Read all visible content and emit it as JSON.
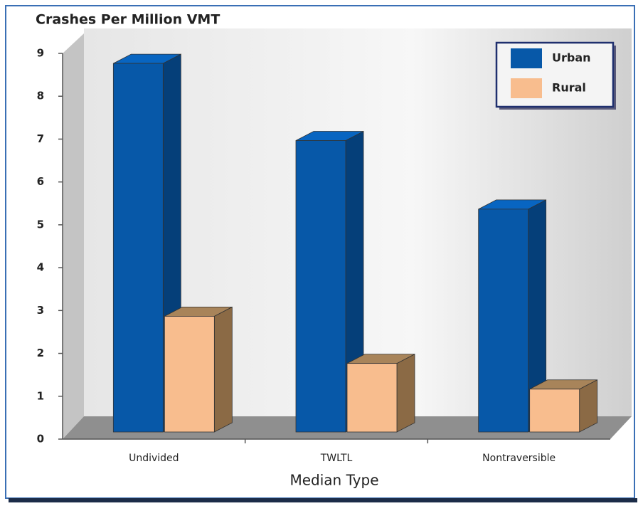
{
  "chart_data": {
    "type": "bar",
    "title": "Crashes Per Million VMT",
    "x_label": "Median Type",
    "categories": [
      "Undivided",
      "TWLTL",
      "Nontraversible"
    ],
    "series": [
      {
        "name": "Urban",
        "color": "#0758a8",
        "values": [
          8.6,
          6.8,
          5.2
        ]
      },
      {
        "name": "Rural",
        "color": "#f8bd8e",
        "values": [
          2.7,
          1.6,
          1.0
        ]
      }
    ],
    "ylim": [
      0,
      9
    ],
    "yticks": [
      0,
      1,
      2,
      3,
      4,
      5,
      6,
      7,
      8,
      9
    ],
    "legend": "upper right",
    "three_d": true
  }
}
